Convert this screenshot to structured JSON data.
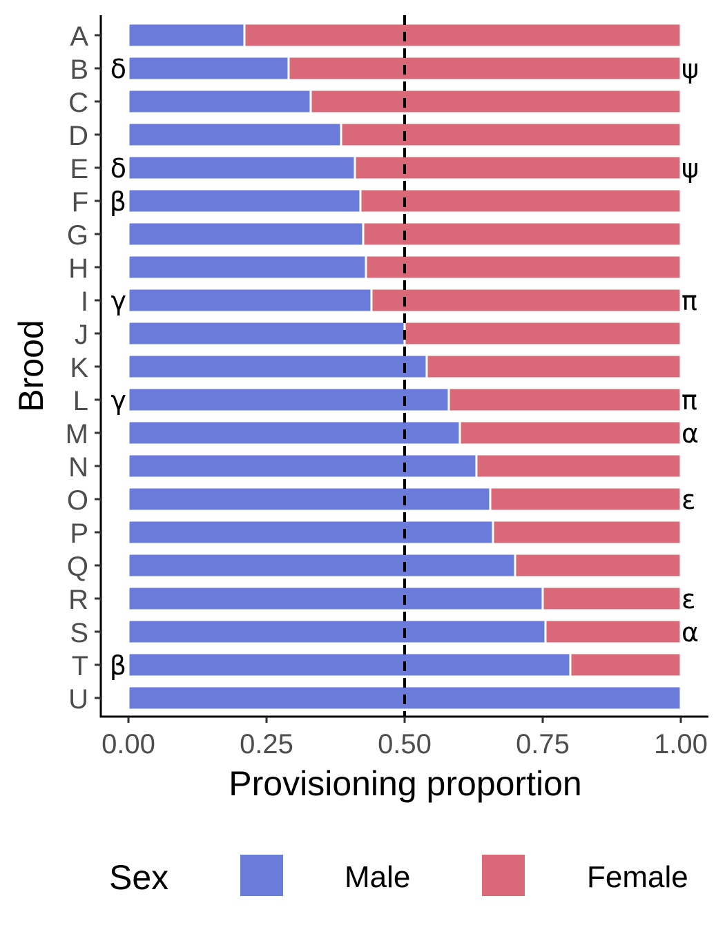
{
  "chart_data": {
    "type": "bar",
    "orientation": "horizontal",
    "stacked": true,
    "xlabel": "Provisioning proportion",
    "ylabel": "Brood",
    "xlim": [
      0,
      1
    ],
    "x_ticks": [
      "0.00",
      "0.25",
      "0.50",
      "0.75",
      "1.00"
    ],
    "x_tick_values": [
      0,
      0.25,
      0.5,
      0.75,
      1.0
    ],
    "reference_line": {
      "x": 0.5,
      "style": "dashed"
    },
    "categories": [
      "A",
      "B",
      "C",
      "D",
      "E",
      "F",
      "G",
      "H",
      "I",
      "J",
      "K",
      "L",
      "M",
      "N",
      "O",
      "P",
      "Q",
      "R",
      "S",
      "T",
      "U"
    ],
    "series": [
      {
        "name": "Male",
        "color": "#6b7bd9",
        "values": [
          0.21,
          0.29,
          0.33,
          0.385,
          0.41,
          0.42,
          0.425,
          0.43,
          0.44,
          0.5,
          0.54,
          0.58,
          0.6,
          0.63,
          0.655,
          0.66,
          0.7,
          0.75,
          0.755,
          0.8,
          1.0
        ]
      },
      {
        "name": "Female",
        "color": "#d96878",
        "values": [
          0.79,
          0.71,
          0.67,
          0.615,
          0.59,
          0.58,
          0.575,
          0.57,
          0.56,
          0.5,
          0.46,
          0.42,
          0.4,
          0.37,
          0.345,
          0.34,
          0.3,
          0.25,
          0.245,
          0.2,
          0.0
        ]
      }
    ],
    "left_annotations": [
      "",
      "δ",
      "",
      "",
      "δ",
      "β",
      "",
      "",
      "γ",
      "",
      "",
      "γ",
      "",
      "",
      "",
      "",
      "",
      "",
      "",
      "β",
      ""
    ],
    "right_annotations": [
      "",
      "ψ",
      "",
      "",
      "ψ",
      "",
      "",
      "",
      "π",
      "",
      "",
      "π",
      "α",
      "",
      "ε",
      "",
      "",
      "ε",
      "α",
      "",
      ""
    ],
    "legend": {
      "title": "Sex",
      "position": "bottom",
      "entries": [
        "Male",
        "Female"
      ]
    },
    "grid": false
  }
}
